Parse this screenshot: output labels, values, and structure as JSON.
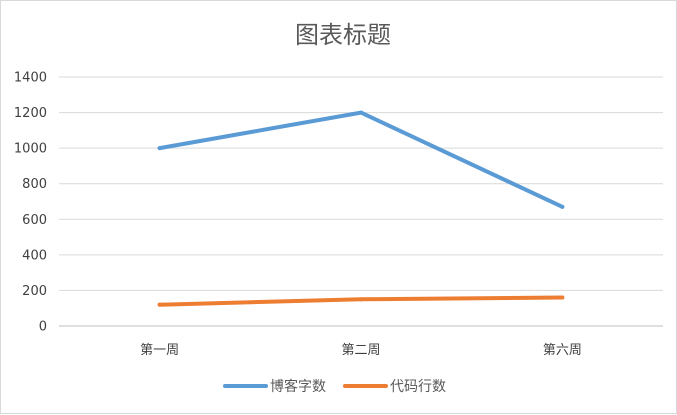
{
  "chart_data": {
    "type": "line",
    "title": "图表标题",
    "categories": [
      "第一周",
      "第二周",
      "第六周"
    ],
    "series": [
      {
        "name": "博客字数",
        "values": [
          1000,
          1200,
          670
        ],
        "color": "#5B9BD5"
      },
      {
        "name": "代码行数",
        "values": [
          120,
          150,
          160
        ],
        "color": "#ED7D31"
      }
    ],
    "ylim": [
      0,
      1400
    ],
    "yticks": [
      "0",
      "200",
      "400",
      "600",
      "800",
      "1000",
      "1200",
      "1400"
    ],
    "grid": true,
    "legend_position": "bottom",
    "xlabel": "",
    "ylabel": ""
  }
}
